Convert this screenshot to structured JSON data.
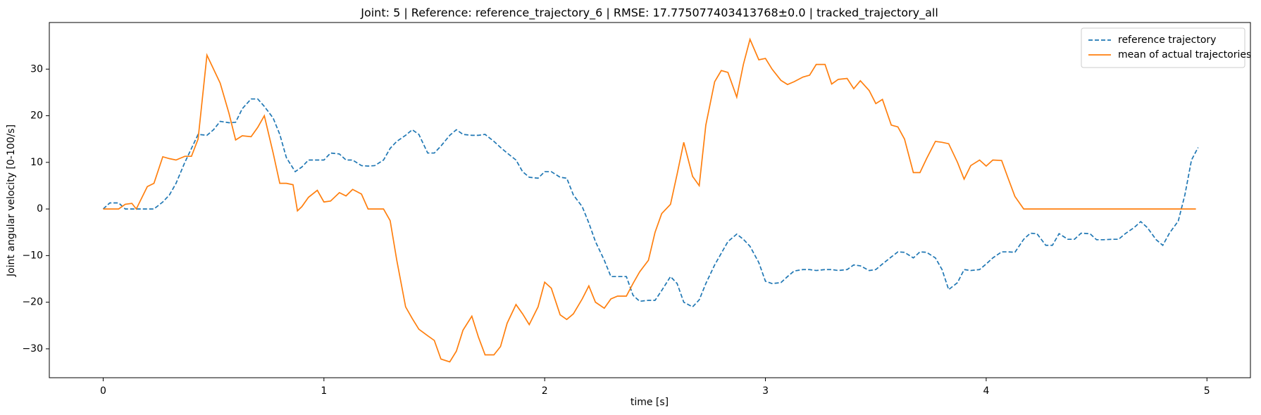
{
  "chart_data": {
    "type": "line",
    "title": "Joint: 5 | Reference: reference_trajectory_6 | RMSE: 17.775077403413768±0.0 | tracked_trajectory_all",
    "xlabel": "time [s]",
    "ylabel": "Joint angular velocity [0-100/s]",
    "xlim": [
      -0.244,
      5.197
    ],
    "ylim": [
      -36.2,
      40
    ],
    "xticks": [
      0,
      1,
      2,
      3,
      4,
      5
    ],
    "yticks": [
      {
        "value": -30,
        "label": "−30"
      },
      {
        "value": -20,
        "label": "−20"
      },
      {
        "value": -10,
        "label": "−10"
      },
      0,
      10,
      20,
      30
    ],
    "legend": "upper right",
    "series": [
      {
        "name": "reference trajectory",
        "color": "#1f77b4",
        "dash": true,
        "x": [
          0,
          0.03,
          0.07,
          0.1,
          0.15,
          0.23,
          0.27,
          0.3,
          0.33,
          0.37,
          0.4,
          0.43,
          0.47,
          0.5,
          0.53,
          0.57,
          0.6,
          0.63,
          0.67,
          0.7,
          0.73,
          0.77,
          0.8,
          0.83,
          0.87,
          0.9,
          0.93,
          0.97,
          1.0,
          1.03,
          1.07,
          1.1,
          1.13,
          1.17,
          1.2,
          1.23,
          1.27,
          1.3,
          1.33,
          1.37,
          1.4,
          1.43,
          1.47,
          1.5,
          1.53,
          1.57,
          1.6,
          1.63,
          1.67,
          1.7,
          1.73,
          1.77,
          1.8,
          1.83,
          1.87,
          1.9,
          1.93,
          1.97,
          2.0,
          2.03,
          2.07,
          2.1,
          2.13,
          2.17,
          2.2,
          2.23,
          2.27,
          2.3,
          2.33,
          2.37,
          2.4,
          2.43,
          2.47,
          2.5,
          2.53,
          2.57,
          2.6,
          2.63,
          2.67,
          2.7,
          2.73,
          2.77,
          2.8,
          2.83,
          2.87,
          2.9,
          2.93,
          2.97,
          3.0,
          3.03,
          3.07,
          3.1,
          3.13,
          3.17,
          3.2,
          3.23,
          3.27,
          3.3,
          3.33,
          3.37,
          3.4,
          3.43,
          3.47,
          3.5,
          3.53,
          3.57,
          3.6,
          3.63,
          3.67,
          3.7,
          3.73,
          3.77,
          3.8,
          3.83,
          3.87,
          3.9,
          3.93,
          3.97,
          4.0,
          4.03,
          4.07,
          4.1,
          4.13,
          4.17,
          4.2,
          4.23,
          4.27,
          4.3,
          4.33,
          4.37,
          4.4,
          4.43,
          4.47,
          4.5,
          4.53,
          4.57,
          4.6,
          4.63,
          4.67,
          4.7,
          4.73,
          4.77,
          4.8,
          4.83,
          4.87,
          4.9,
          4.93,
          4.96
        ],
        "values": [
          0,
          1.3,
          1.3,
          0,
          0,
          0,
          1.5,
          3,
          5.5,
          10,
          13,
          16,
          15.8,
          17,
          18.8,
          18.5,
          18.6,
          21.5,
          23.6,
          23.6,
          22,
          19.5,
          16,
          11,
          8,
          9,
          10.5,
          10.5,
          10.5,
          12,
          11.8,
          10.5,
          10.5,
          9.3,
          9.2,
          9.3,
          10.5,
          13,
          14.5,
          15.8,
          17,
          16,
          12,
          12,
          13.5,
          15.8,
          17,
          16,
          15.8,
          15.8,
          16,
          14.5,
          13.2,
          12,
          10.5,
          8,
          6.8,
          6.6,
          8,
          8,
          6.8,
          6.6,
          3,
          0.5,
          -3,
          -7,
          -11,
          -14.5,
          -14.5,
          -14.5,
          -18.5,
          -19.8,
          -19.6,
          -19.6,
          -17.5,
          -14.5,
          -16,
          -20,
          -21,
          -19.5,
          -16,
          -12,
          -9.5,
          -7,
          -5.4,
          -6.5,
          -8,
          -11.5,
          -15.5,
          -16,
          -15.8,
          -14.5,
          -13.3,
          -13,
          -13,
          -13.2,
          -13,
          -13,
          -13.2,
          -13,
          -12,
          -12.2,
          -13.2,
          -13,
          -11.8,
          -10.3,
          -9.2,
          -9.3,
          -10.5,
          -9.2,
          -9.3,
          -10.5,
          -13,
          -17.3,
          -15.8,
          -13,
          -13.2,
          -13,
          -11.8,
          -10.5,
          -9.2,
          -9.2,
          -9.3,
          -6.5,
          -5.2,
          -5.3,
          -7.8,
          -7.8,
          -5.3,
          -6.5,
          -6.5,
          -5.2,
          -5.3,
          -6.6,
          -6.6,
          -6.5,
          -6.5,
          -5.3,
          -4,
          -2.7,
          -4,
          -6.6,
          -7.8,
          -5.2,
          -2.6,
          3,
          10.5,
          13.2
        ]
      },
      {
        "name": "mean of actual trajectories",
        "color": "#ff7f0e",
        "dash": false,
        "x": [
          0,
          0.03,
          0.07,
          0.1,
          0.13,
          0.15,
          0.2,
          0.23,
          0.27,
          0.3,
          0.33,
          0.37,
          0.4,
          0.43,
          0.47,
          0.5,
          0.53,
          0.57,
          0.6,
          0.63,
          0.67,
          0.7,
          0.73,
          0.77,
          0.8,
          0.83,
          0.86,
          0.88,
          0.9,
          0.93,
          0.97,
          1.0,
          1.03,
          1.07,
          1.1,
          1.13,
          1.17,
          1.2,
          1.23,
          1.27,
          1.3,
          1.33,
          1.37,
          1.4,
          1.43,
          1.47,
          1.5,
          1.53,
          1.57,
          1.6,
          1.63,
          1.67,
          1.7,
          1.73,
          1.77,
          1.8,
          1.83,
          1.87,
          1.9,
          1.93,
          1.97,
          2.0,
          2.03,
          2.07,
          2.1,
          2.13,
          2.17,
          2.2,
          2.23,
          2.27,
          2.3,
          2.33,
          2.37,
          2.4,
          2.43,
          2.47,
          2.5,
          2.53,
          2.57,
          2.6,
          2.63,
          2.67,
          2.7,
          2.73,
          2.77,
          2.8,
          2.83,
          2.87,
          2.9,
          2.93,
          2.97,
          3.0,
          3.03,
          3.07,
          3.1,
          3.13,
          3.17,
          3.2,
          3.23,
          3.27,
          3.3,
          3.33,
          3.37,
          3.4,
          3.43,
          3.47,
          3.5,
          3.53,
          3.57,
          3.6,
          3.63,
          3.67,
          3.7,
          3.73,
          3.77,
          3.8,
          3.83,
          3.87,
          3.9,
          3.93,
          3.97,
          4.0,
          4.03,
          4.07,
          4.1,
          4.13,
          4.17,
          4.2,
          4.95
        ],
        "values": [
          0,
          0,
          0,
          1,
          1.2,
          0,
          4.8,
          5.5,
          11.2,
          10.8,
          10.5,
          11.3,
          11.3,
          15,
          33,
          30,
          27,
          20.5,
          14.8,
          15.7,
          15.5,
          17.5,
          20,
          12,
          5.5,
          5.5,
          5.2,
          -0.4,
          0.5,
          2.5,
          4,
          1.5,
          1.7,
          3.5,
          2.8,
          4.2,
          3.2,
          0,
          0,
          0,
          -2.5,
          -11,
          -21,
          -23.5,
          -25.8,
          -27.2,
          -28.2,
          -32.2,
          -32.8,
          -30.5,
          -26,
          -23,
          -27.5,
          -31.3,
          -31.3,
          -29.5,
          -24.5,
          -20.5,
          -22.5,
          -24.8,
          -21,
          -15.7,
          -17,
          -22.7,
          -23.7,
          -22.5,
          -19.3,
          -16.5,
          -20,
          -21.3,
          -19.3,
          -18.7,
          -18.7,
          -16,
          -13.5,
          -11,
          -5,
          -1,
          1,
          7.5,
          14.3,
          7,
          5,
          18,
          27.3,
          29.7,
          29.3,
          24,
          31,
          36.4,
          32,
          32.3,
          30,
          27.6,
          26.7,
          27.3,
          28.3,
          28.7,
          31,
          31,
          26.8,
          27.8,
          28,
          25.8,
          27.5,
          25.4,
          22.6,
          23.5,
          18,
          17.6,
          15,
          7.8,
          7.8,
          10.8,
          14.5,
          14.3,
          14,
          10,
          6.4,
          9.3,
          10.5,
          9.2,
          10.5,
          10.4,
          6.5,
          2.7,
          0,
          0,
          0
        ]
      }
    ]
  }
}
